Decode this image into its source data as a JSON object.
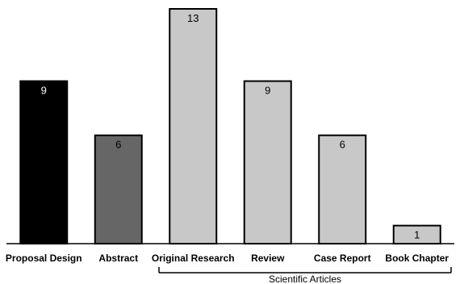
{
  "chart_data": {
    "type": "bar",
    "title": "",
    "xlabel": "",
    "ylabel": "",
    "categories": [
      "Proposal Design",
      "Abstract",
      "Original Research",
      "Review",
      "Case Report",
      "Book Chapter"
    ],
    "values": [
      9,
      6,
      13,
      9,
      6,
      1
    ],
    "ylim": [
      0,
      13
    ],
    "grid": false,
    "bar_colors": [
      "#000000",
      "#666666",
      "#c8c8c8",
      "#c8c8c8",
      "#c8c8c8",
      "#c8c8c8"
    ],
    "bar_outline_color": "#000000",
    "label_colors": [
      "#ffffff",
      "#000000",
      "#000000",
      "#000000",
      "#000000",
      "#000000"
    ],
    "group": {
      "label": "Scientific Articles",
      "from_category": 2,
      "to_category": 5
    }
  }
}
